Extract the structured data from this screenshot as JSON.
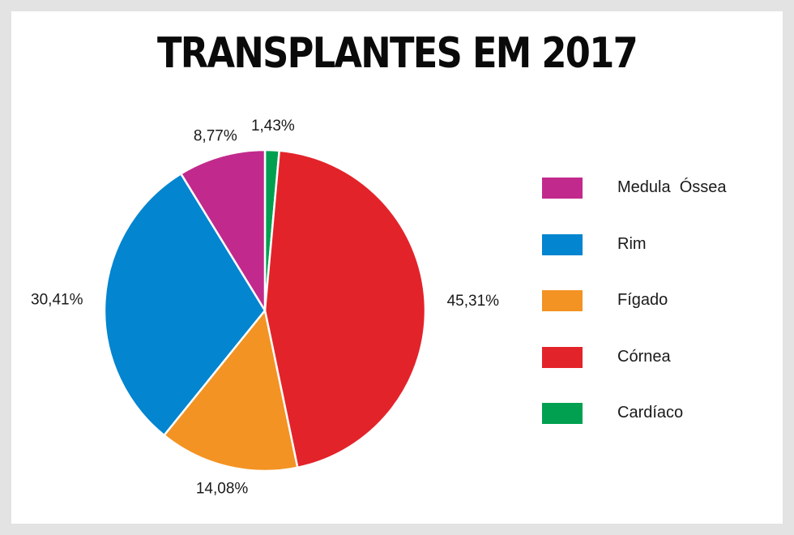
{
  "chart_data": {
    "type": "pie",
    "title": "TRANSPLANTES EM 2017",
    "slices": [
      {
        "name": "Cardíaco",
        "value": 1.43,
        "label": "1,43%",
        "color": "#00a050"
      },
      {
        "name": "Córnea",
        "value": 45.31,
        "label": "45,31%",
        "color": "#e3232a"
      },
      {
        "name": "Fígado",
        "value": 14.08,
        "label": "14,08%",
        "color": "#f39323"
      },
      {
        "name": "Rim",
        "value": 30.41,
        "label": "30,41%",
        "color": "#0385d0"
      },
      {
        "name": "Medula  Óssea",
        "value": 8.77,
        "label": "8,77%",
        "color": "#c12a8c"
      }
    ],
    "legend": [
      {
        "name": "Medula  Óssea",
        "color": "#c12a8c"
      },
      {
        "name": "Rim",
        "color": "#0385d0"
      },
      {
        "name": "Fígado",
        "color": "#f39323"
      },
      {
        "name": "Córnea",
        "color": "#e3232a"
      },
      {
        "name": "Cardíaco",
        "color": "#00a050"
      }
    ],
    "legend_position": "right"
  }
}
